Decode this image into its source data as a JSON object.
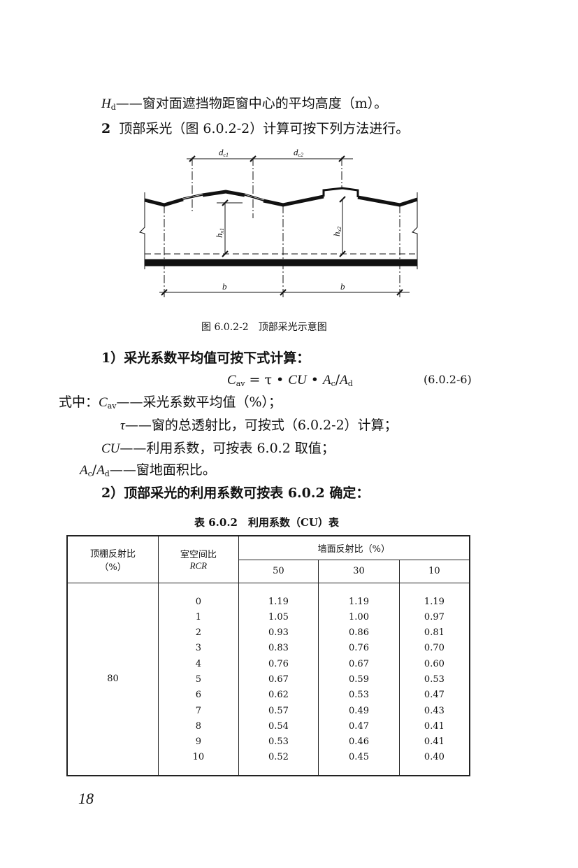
{
  "text": {
    "hd_sym": "H",
    "hd_sub": "d",
    "hd_def": "——窗对面遮挡物距窗中心的平均高度（m）。",
    "item2_num": "2",
    "item2": "顶部采光（图 6.0.2-2）计算可按下列方法进行。",
    "fig_caption": "图 6.0.2-2　顶部采光示意图",
    "sub1": "1）采光系数平均值可按下式计算：",
    "formula": {
      "c": "C",
      "c_sub": "av",
      "mid": " = τ • ",
      "cu": "CU",
      "mid2": " • ",
      "a": "A",
      "a_sub": "c",
      "slash": "/",
      "a2": "A",
      "a2_sub": "d",
      "num": "(6.0.2-6)"
    },
    "where_label": "式中：",
    "def1_sym": "C",
    "def1_sub": "av",
    "def1": "——采光系数平均值（%）；",
    "def2_sym": "τ",
    "def2": "——窗的总透射比，可按式（6.0.2-2）计算；",
    "def3_sym": "CU",
    "def3": "——利用系数，可按表 6.0.2 取值；",
    "def4_sym": "A",
    "def4_sub": "c",
    "def4_slash": "/",
    "def4_sym2": "A",
    "def4_sub2": "d",
    "def4": "——窗地面积比。",
    "sub2": "2）顶部采光的利用系数可按表 6.0.2 确定：",
    "table_title": "表 6.0.2　利用系数（CU）表",
    "page_number": "18"
  },
  "figure": {
    "dc1": "d",
    "dc1_sub": "c1",
    "dc2": "d",
    "dc2_sub": "c2",
    "hx1": "h",
    "hx1_sub": "x1",
    "hx2": "h",
    "hx2_sub": "x2",
    "b1": "b",
    "b2": "b"
  },
  "table": {
    "h_ceiling": "顶棚反射比",
    "h_ceiling_unit": "（%）",
    "h_rcr": "室空间比",
    "h_rcr_sym": "RCR",
    "h_wall": "墙面反射比（%）",
    "wall_cols": [
      "50",
      "30",
      "10"
    ],
    "ceiling_value": "80",
    "rcr": [
      "0",
      "1",
      "2",
      "3",
      "4",
      "5",
      "6",
      "7",
      "8",
      "9",
      "10"
    ],
    "col50": [
      "1.19",
      "1.05",
      "0.93",
      "0.83",
      "0.76",
      "0.67",
      "0.62",
      "0.57",
      "0.54",
      "0.53",
      "0.52"
    ],
    "col30": [
      "1.19",
      "1.00",
      "0.86",
      "0.76",
      "0.67",
      "0.59",
      "0.53",
      "0.49",
      "0.47",
      "0.46",
      "0.45"
    ],
    "col10": [
      "1.19",
      "0.97",
      "0.81",
      "0.70",
      "0.60",
      "0.53",
      "0.47",
      "0.43",
      "0.41",
      "0.41",
      "0.40"
    ]
  }
}
